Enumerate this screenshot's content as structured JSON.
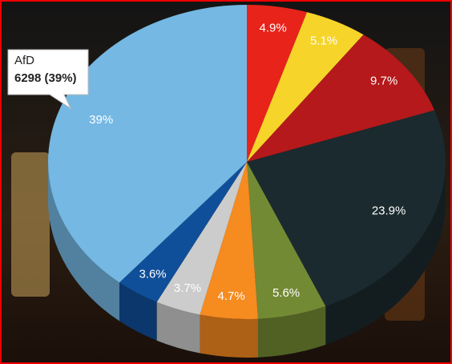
{
  "chart_data": {
    "type": "pie",
    "categories": [
      null,
      null,
      null,
      null,
      null,
      null,
      null,
      null,
      "AfD"
    ],
    "values": [
      4.9,
      5.1,
      9.7,
      23.9,
      5.6,
      4.7,
      3.7,
      3.6,
      39
    ],
    "value_labels": [
      "4.9%",
      "5.1%",
      "9.7%",
      "23.9%",
      "5.6%",
      "4.7%",
      "3.7%",
      "3.6%",
      "39%"
    ],
    "colors": [
      "#e8231a",
      "#f6d42a",
      "#b5191b",
      "#1b2a2e",
      "#738a34",
      "#f68b1f",
      "#cccccc",
      "#0f4f9a",
      "#74b8e3"
    ],
    "tooltip": {
      "title": "AfD",
      "text": "6298 (39%)"
    }
  }
}
